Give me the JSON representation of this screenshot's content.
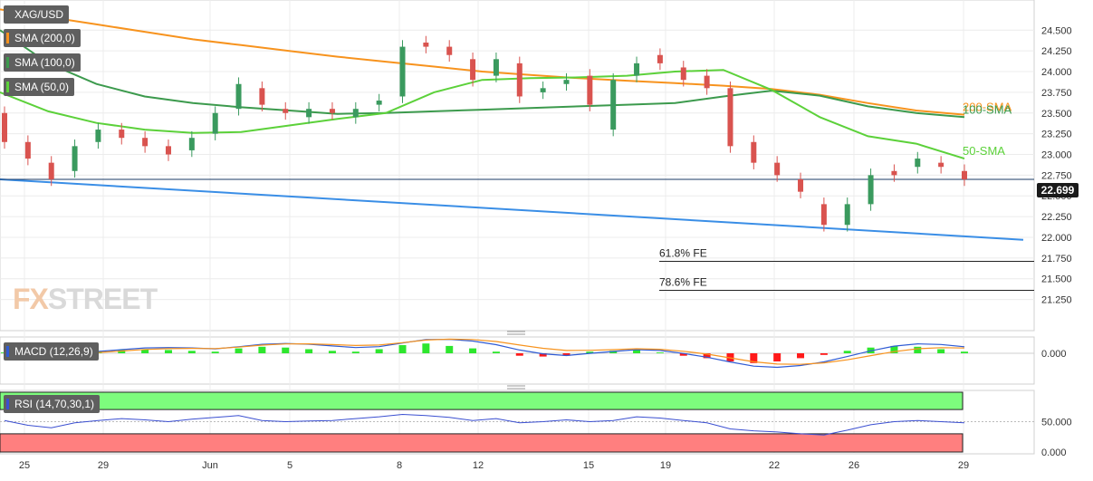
{
  "symbol": "XAG/USD",
  "legends": {
    "sma200": "SMA (200,0)",
    "sma100": "SMA (100,0)",
    "sma50": "SMA (50,0)",
    "macd": "MACD (12,26,9)",
    "rsi": "RSI (14,70,30,1)"
  },
  "watermark": {
    "fx": "FX",
    "street": "STREET"
  },
  "colors": {
    "sma200": "#f7931e",
    "sma100": "#3c9a4d",
    "sma50": "#5cd13a",
    "support": "#3a8ee6",
    "bull": "#3a9a5e",
    "bear": "#d9534f",
    "macd_line": "#2f5bd4",
    "signal_line": "#f7931e",
    "rsi_line": "#3b4fd1",
    "overbought_zone": "#7dfc7d",
    "oversold_zone": "#ff7f7f"
  },
  "chart_data": {
    "type": "candlestick",
    "y_ticks": [
      "24.500",
      "24.250",
      "24.000",
      "23.750",
      "23.500",
      "23.250",
      "23.000",
      "22.750",
      "22.500",
      "22.250",
      "22.000",
      "21.750",
      "21.500",
      "21.250"
    ],
    "ylim": [
      21.15,
      24.7
    ],
    "x_ticks": [
      "25",
      "29",
      "Jun",
      "5",
      "8",
      "12",
      "15",
      "19",
      "22",
      "26",
      "29"
    ],
    "current_price": "22.699",
    "annotations": {
      "sma200_label": "200-SMA",
      "sma100_label": "100-SMA",
      "sma50_label": "50-SMA",
      "fe618": "61.8% FE",
      "fe786": "78.6% FE"
    },
    "fib_levels": {
      "fe618": 21.71,
      "fe786": 21.36
    },
    "support_line": {
      "start": 22.7,
      "end": 21.97
    },
    "sma200": [
      24.75,
      24.66,
      24.57,
      24.48,
      24.39,
      24.32,
      24.25,
      24.18,
      24.12,
      24.06,
      24.0,
      23.96,
      23.92,
      23.89,
      23.86,
      23.83,
      23.79,
      23.72,
      23.62,
      23.53,
      23.48
    ],
    "sma100": [
      24.5,
      24.1,
      23.85,
      23.7,
      23.62,
      23.57,
      23.53,
      23.49,
      23.5,
      23.52,
      23.54,
      23.56,
      23.58,
      23.6,
      23.62,
      23.7,
      23.77,
      23.71,
      23.58,
      23.5,
      23.45
    ],
    "sma50": [
      23.75,
      23.52,
      23.38,
      23.3,
      23.26,
      23.27,
      23.35,
      23.43,
      23.5,
      23.75,
      23.9,
      23.92,
      23.93,
      23.95,
      24.0,
      24.02,
      23.78,
      23.45,
      23.22,
      23.13,
      22.95
    ],
    "candles": [
      [
        23.5,
        23.15
      ],
      [
        23.15,
        22.95
      ],
      [
        22.9,
        22.7
      ],
      [
        22.8,
        23.1
      ],
      [
        23.15,
        23.3
      ],
      [
        23.3,
        23.2
      ],
      [
        23.2,
        23.1
      ],
      [
        23.1,
        23.0
      ],
      [
        23.05,
        23.2
      ],
      [
        23.25,
        23.5
      ],
      [
        23.55,
        23.85
      ],
      [
        23.8,
        23.6
      ],
      [
        23.55,
        23.5
      ],
      [
        23.45,
        23.55
      ],
      [
        23.55,
        23.5
      ],
      [
        23.45,
        23.55
      ],
      [
        23.6,
        23.65
      ],
      [
        23.7,
        24.3
      ],
      [
        24.35,
        24.3
      ],
      [
        24.3,
        24.2
      ],
      [
        24.15,
        23.9
      ],
      [
        23.95,
        24.15
      ],
      [
        24.1,
        23.7
      ],
      [
        23.75,
        23.8
      ],
      [
        23.85,
        23.9
      ],
      [
        23.95,
        23.6
      ],
      [
        23.3,
        23.9
      ],
      [
        23.95,
        24.1
      ],
      [
        24.2,
        24.1
      ],
      [
        24.05,
        23.9
      ],
      [
        23.95,
        23.8
      ],
      [
        23.8,
        23.1
      ],
      [
        23.15,
        22.9
      ],
      [
        22.9,
        22.75
      ],
      [
        22.7,
        22.55
      ],
      [
        22.4,
        22.15
      ],
      [
        22.15,
        22.4
      ],
      [
        22.4,
        22.75
      ],
      [
        22.8,
        22.75
      ],
      [
        22.85,
        22.95
      ],
      [
        22.9,
        22.85
      ],
      [
        22.8,
        22.7
      ]
    ],
    "macd_ticks": [
      "0.000"
    ],
    "macd_hist": [
      0.01,
      -0.02,
      -0.03,
      0.02,
      0.03,
      0.04,
      0.05,
      0.04,
      0.03,
      0.02,
      0.06,
      0.08,
      0.07,
      0.05,
      0.03,
      0.02,
      0.05,
      0.1,
      0.12,
      0.09,
      0.06,
      0.02,
      -0.03,
      -0.04,
      -0.03,
      0.02,
      0.03,
      0.04,
      0.01,
      -0.03,
      -0.06,
      -0.1,
      -0.12,
      -0.1,
      -0.06,
      -0.02,
      0.03,
      0.07,
      0.09,
      0.08,
      0.05,
      0.02
    ],
    "rsi_ticks": [
      "50.000",
      "0.000"
    ],
    "rsi_overbought": 70,
    "rsi_oversold": 30,
    "rsi": [
      52,
      44,
      40,
      48,
      52,
      55,
      53,
      50,
      54,
      57,
      60,
      52,
      50,
      51,
      52,
      55,
      58,
      62,
      60,
      57,
      52,
      55,
      48,
      50,
      53,
      50,
      52,
      58,
      56,
      52,
      48,
      38,
      35,
      33,
      30,
      28,
      36,
      45,
      50,
      52,
      50,
      48
    ]
  }
}
